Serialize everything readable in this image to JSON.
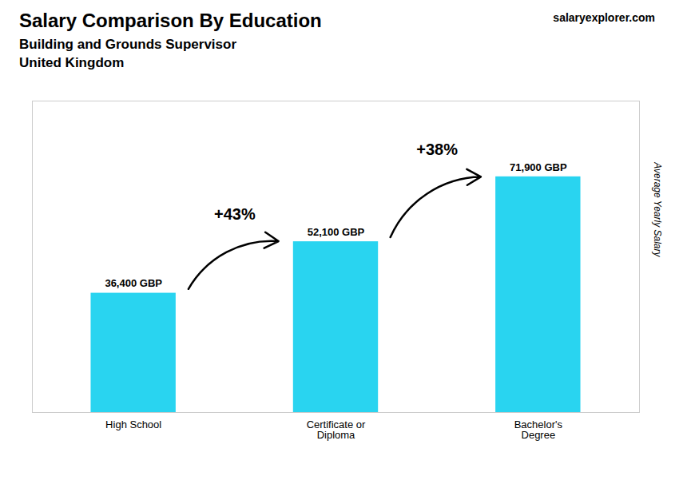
{
  "chart_data": {
    "type": "bar",
    "title": "Salary Comparison By Education",
    "subtitle": [
      "Building and Grounds Supervisor",
      "United Kingdom"
    ],
    "source": "salaryexplorer.com",
    "categories": [
      "High School",
      "Certificate or\nDiploma",
      "Bachelor's\nDegree"
    ],
    "values": [
      36400,
      52100,
      71900
    ],
    "value_labels": [
      "36,400 GBP",
      "52,100 GBP",
      "71,900 GBP"
    ],
    "data_labels": true,
    "color": "#29d4f0",
    "ylabel": "Average Yearly Salary",
    "ylim": [
      0,
      95000
    ],
    "yticks": [],
    "tick_labels": "x",
    "grid": false,
    "annotations": [
      {
        "text": "+43%",
        "from": "High School",
        "to": "Certificate or\nDiploma"
      },
      {
        "text": "+38%",
        "from": "Certificate or\nDiploma",
        "to": "Bachelor's\nDegree"
      }
    ]
  }
}
